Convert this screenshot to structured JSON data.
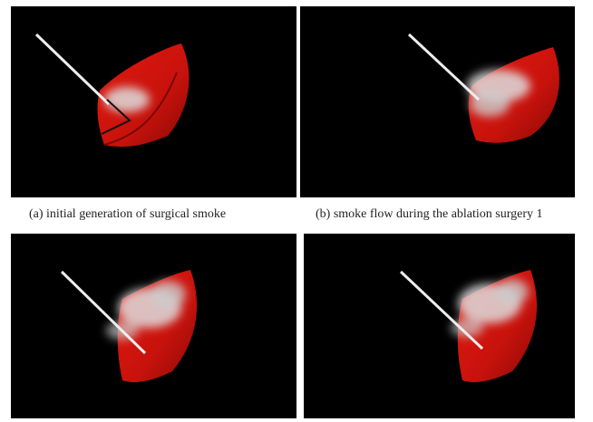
{
  "figure": {
    "captions": [
      "(a) initial generation of surgical smoke",
      "(b) smoke flow during the ablation surgery 1"
    ]
  }
}
